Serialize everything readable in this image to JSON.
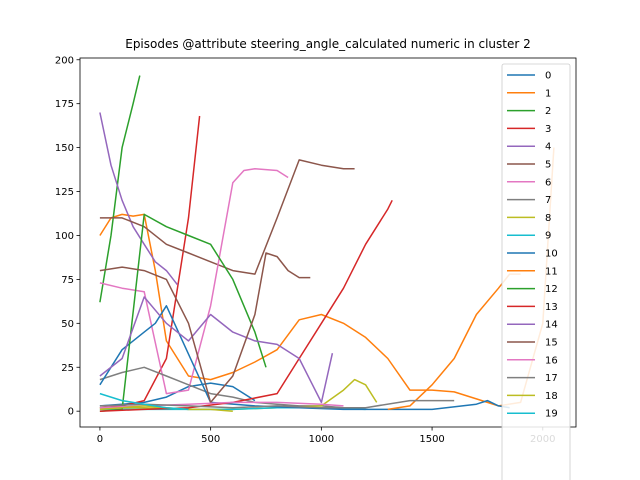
{
  "chart_data": {
    "type": "line",
    "title": "Episodes @attribute steering_angle_calculated numeric in cluster 2",
    "xlabel": "",
    "ylabel": "",
    "xlim": [
      -90,
      2150
    ],
    "ylim": [
      -9,
      201
    ],
    "xticks": [
      0,
      500,
      1000,
      1500,
      2000
    ],
    "yticks": [
      0,
      25,
      50,
      75,
      100,
      125,
      150,
      175,
      200
    ],
    "legend_position": "upper right",
    "series": [
      {
        "name": "0",
        "color": "#1f77b4",
        "x": [
          0,
          100,
          200,
          300,
          400,
          500,
          600,
          700
        ],
        "y": [
          3,
          4,
          5,
          8,
          14,
          16,
          14,
          6
        ]
      },
      {
        "name": "1",
        "color": "#ff7f0e",
        "x": [
          0,
          50,
          100,
          150,
          200,
          250,
          300,
          400,
          500,
          600,
          700,
          800,
          900,
          1000,
          1100,
          1200,
          1300,
          1400,
          1500,
          1600,
          1700,
          1800,
          1900,
          2000,
          2050
        ],
        "y": [
          100,
          110,
          112,
          111,
          112,
          80,
          40,
          20,
          18,
          22,
          28,
          35,
          52,
          55,
          50,
          42,
          30,
          12,
          12,
          11,
          7,
          3,
          5,
          50,
          150
        ]
      },
      {
        "name": "2",
        "color": "#2ca02c",
        "x": [
          0,
          50,
          100,
          150,
          180
        ],
        "y": [
          62,
          100,
          150,
          175,
          191
        ]
      },
      {
        "name": "3",
        "color": "#d62728",
        "x": [
          0,
          100,
          200,
          300,
          400,
          450
        ],
        "y": [
          2,
          3,
          6,
          30,
          110,
          168
        ]
      },
      {
        "name": "4",
        "color": "#9467bd",
        "x": [
          0,
          50,
          100,
          150,
          200,
          250,
          300,
          350
        ],
        "y": [
          170,
          140,
          120,
          105,
          95,
          85,
          80,
          72
        ]
      },
      {
        "name": "5",
        "color": "#8c564b",
        "x": [
          0,
          100,
          200,
          300,
          400,
          500,
          600,
          700,
          800,
          900,
          1000,
          1100,
          1150
        ],
        "y": [
          110,
          110,
          105,
          95,
          90,
          85,
          80,
          78,
          110,
          143,
          140,
          138,
          138
        ]
      },
      {
        "name": "6",
        "color": "#e377c2",
        "x": [
          0,
          100,
          200,
          300,
          400,
          500,
          550,
          600,
          650,
          700,
          800,
          850
        ],
        "y": [
          73,
          70,
          68,
          10,
          12,
          60,
          95,
          130,
          137,
          138,
          137,
          133
        ]
      },
      {
        "name": "7",
        "color": "#7f7f7f",
        "x": [
          0,
          100,
          200,
          300,
          400,
          500,
          600,
          700,
          800,
          900,
          1000,
          1100,
          1200
        ],
        "y": [
          18,
          22,
          25,
          20,
          15,
          10,
          8,
          5,
          4,
          3,
          3,
          2,
          2
        ]
      },
      {
        "name": "8",
        "color": "#bcbd22",
        "x": [
          0,
          200,
          400,
          600,
          800,
          1000,
          1100,
          1150,
          1200,
          1250
        ],
        "y": [
          2,
          2,
          1,
          1,
          2,
          3,
          12,
          18,
          15,
          5
        ]
      },
      {
        "name": "9",
        "color": "#17becf",
        "x": [
          0,
          200,
          400,
          600,
          800,
          1000,
          1200
        ],
        "y": [
          1,
          1,
          1,
          1,
          2,
          2,
          1
        ]
      },
      {
        "name": "10",
        "color": "#1f77b4",
        "x": [
          0,
          100,
          200,
          250,
          300,
          500,
          700,
          900,
          1100,
          1300,
          1500,
          1700,
          1750,
          1800,
          1850
        ],
        "y": [
          15,
          35,
          45,
          50,
          60,
          5,
          3,
          2,
          1,
          1,
          1,
          4,
          6,
          3,
          2
        ]
      },
      {
        "name": "11",
        "color": "#ff7f0e",
        "x": [
          1300,
          1400,
          1500,
          1600,
          1700,
          1800,
          1850,
          1900
        ],
        "y": [
          1,
          3,
          15,
          30,
          55,
          70,
          78,
          78
        ]
      },
      {
        "name": "12",
        "color": "#2ca02c",
        "x": [
          0,
          100,
          200,
          300,
          400,
          500,
          600,
          700,
          750
        ],
        "y": [
          0,
          1,
          112,
          105,
          100,
          95,
          75,
          45,
          25
        ]
      },
      {
        "name": "13",
        "color": "#d62728",
        "x": [
          0,
          200,
          400,
          600,
          800,
          900,
          1000,
          1100,
          1200,
          1300,
          1320
        ],
        "y": [
          0,
          1,
          2,
          5,
          10,
          30,
          50,
          70,
          95,
          115,
          120
        ]
      },
      {
        "name": "14",
        "color": "#9467bd",
        "x": [
          0,
          100,
          200,
          300,
          400,
          500,
          600,
          700,
          800,
          900,
          1000,
          1050
        ],
        "y": [
          20,
          30,
          65,
          50,
          40,
          55,
          45,
          40,
          38,
          30,
          5,
          33
        ]
      },
      {
        "name": "15",
        "color": "#8c564b",
        "x": [
          0,
          100,
          200,
          300,
          400,
          500,
          600,
          700,
          750,
          800,
          850,
          900,
          950
        ],
        "y": [
          80,
          82,
          80,
          75,
          50,
          5,
          20,
          55,
          90,
          88,
          80,
          76,
          76
        ]
      },
      {
        "name": "16",
        "color": "#e377c2",
        "x": [
          0,
          200,
          400,
          600,
          800,
          1000,
          1100
        ],
        "y": [
          2,
          3,
          4,
          5,
          5,
          4,
          3
        ]
      },
      {
        "name": "17",
        "color": "#7f7f7f",
        "x": [
          0,
          200,
          400,
          600,
          800,
          1000,
          1200,
          1400,
          1600
        ],
        "y": [
          3,
          4,
          3,
          2,
          3,
          2,
          2,
          6,
          6
        ]
      },
      {
        "name": "18",
        "color": "#bcbd22",
        "x": [
          0,
          100,
          200,
          300,
          400,
          500,
          600
        ],
        "y": [
          1,
          2,
          3,
          2,
          1,
          1,
          0
        ]
      },
      {
        "name": "19",
        "color": "#17becf",
        "x": [
          0,
          100,
          200,
          300,
          400
        ],
        "y": [
          10,
          6,
          4,
          2,
          1
        ]
      }
    ]
  }
}
